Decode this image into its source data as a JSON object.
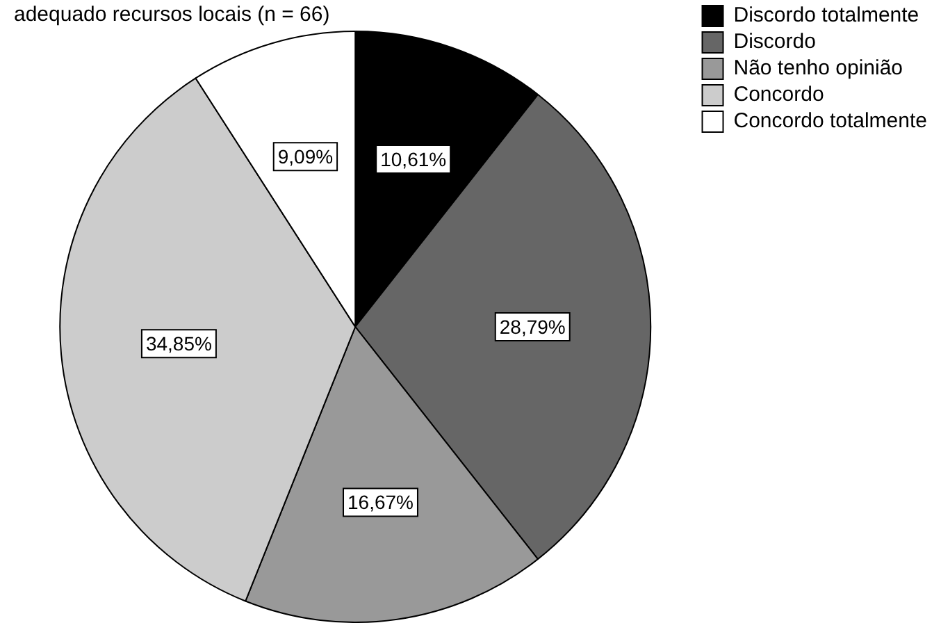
{
  "chart_data": {
    "type": "pie",
    "title": "adequado recursos locais (n = 66)",
    "categories": [
      "Discordo totalmente",
      "Discordo",
      "Não tenho opinião",
      "Concordo",
      "Concordo totalmente"
    ],
    "values": [
      10.61,
      28.79,
      16.67,
      34.85,
      9.09
    ],
    "colors": [
      "#000000",
      "#666666",
      "#999999",
      "#cccccc",
      "#ffffff"
    ],
    "value_labels": [
      "10,61%",
      "28,79%",
      "16,67%",
      "34,85%",
      "9,09%"
    ],
    "legend": "top right"
  }
}
